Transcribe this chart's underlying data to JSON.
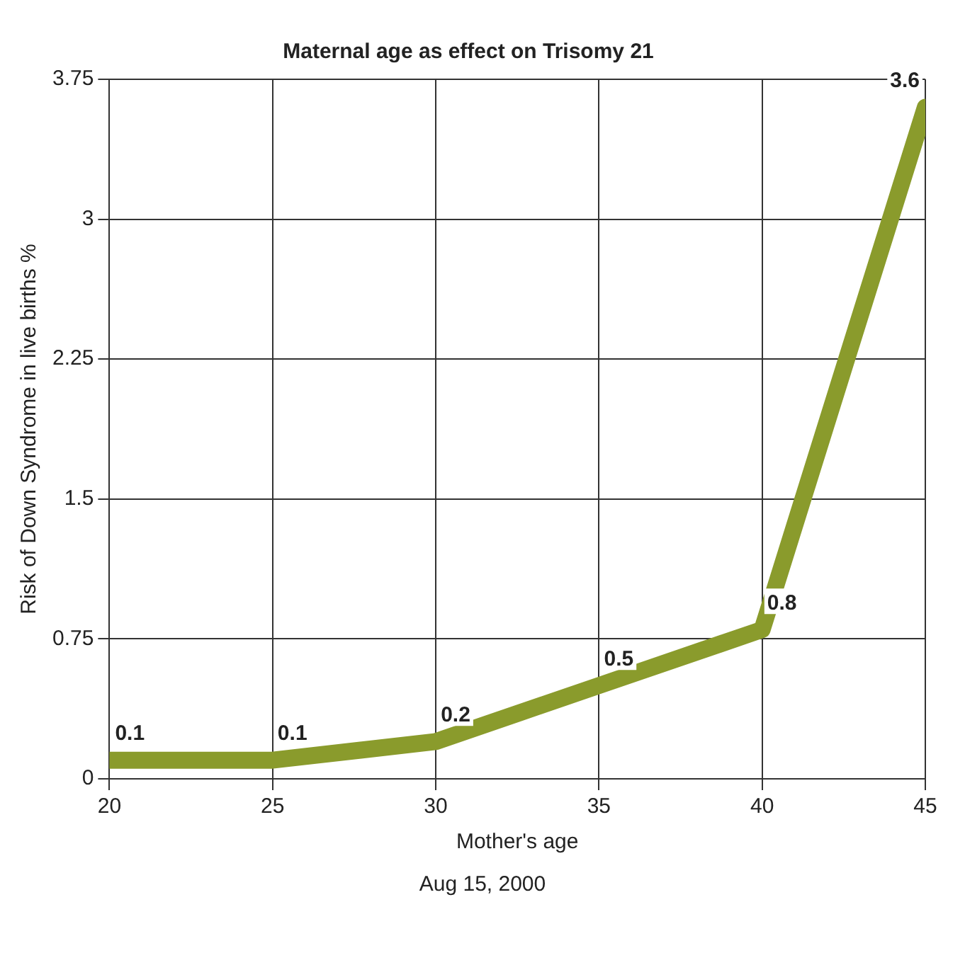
{
  "chart_data": {
    "type": "line",
    "title": "Maternal age as effect on Trisomy 21",
    "xlabel": "Mother's age",
    "ylabel": "Risk of Down Syndrome in live births %",
    "x": [
      20,
      25,
      30,
      35,
      40,
      45
    ],
    "series": [
      {
        "color": "#8a9b2c",
        "values": [
          0.1,
          0.1,
          0.2,
          0.5,
          0.8,
          3.6
        ]
      }
    ],
    "xlim": [
      20,
      45
    ],
    "xticks": [
      20,
      25,
      30,
      35,
      40,
      45
    ],
    "ylim": [
      0,
      3.75
    ],
    "yticks": [
      0,
      0.75,
      1.5,
      2.25,
      3,
      3.75
    ],
    "grid": true,
    "data_labels": true,
    "marker": "none",
    "line_style": "solid",
    "annotations": [
      "Aug 15, 2000"
    ]
  }
}
